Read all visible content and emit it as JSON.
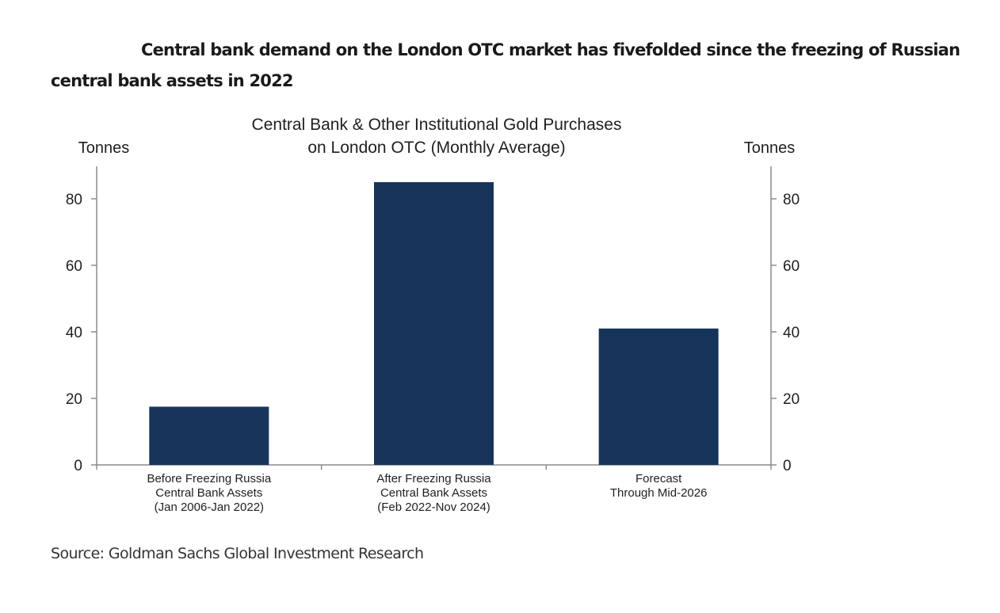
{
  "headline": "Central bank demand on the London OTC market has fivefolded since the freezing of Russian central bank assets in 2022",
  "source": "Source: Goldman Sachs Global Investment Research",
  "chart_data": {
    "type": "bar",
    "title_lines": [
      "Central Bank & Other Institutional Gold Purchases",
      "on London OTC (Monthly Average)"
    ],
    "ylabel_left": "Tonnes",
    "ylabel_right": "Tonnes",
    "ylim": [
      0,
      90
    ],
    "yticks": [
      0,
      20,
      40,
      60,
      80
    ],
    "categories": [
      [
        "Before Freezing Russia",
        "Central Bank Assets",
        "(Jan 2006-Jan 2022)"
      ],
      [
        "After Freezing Russia",
        "Central Bank Assets",
        "(Feb 2022-Nov 2024)"
      ],
      [
        "Forecast",
        "Through Mid-2026"
      ]
    ],
    "values": [
      17.5,
      85,
      41
    ],
    "bar_color": "#17345b",
    "grid": false,
    "legend": "none"
  }
}
